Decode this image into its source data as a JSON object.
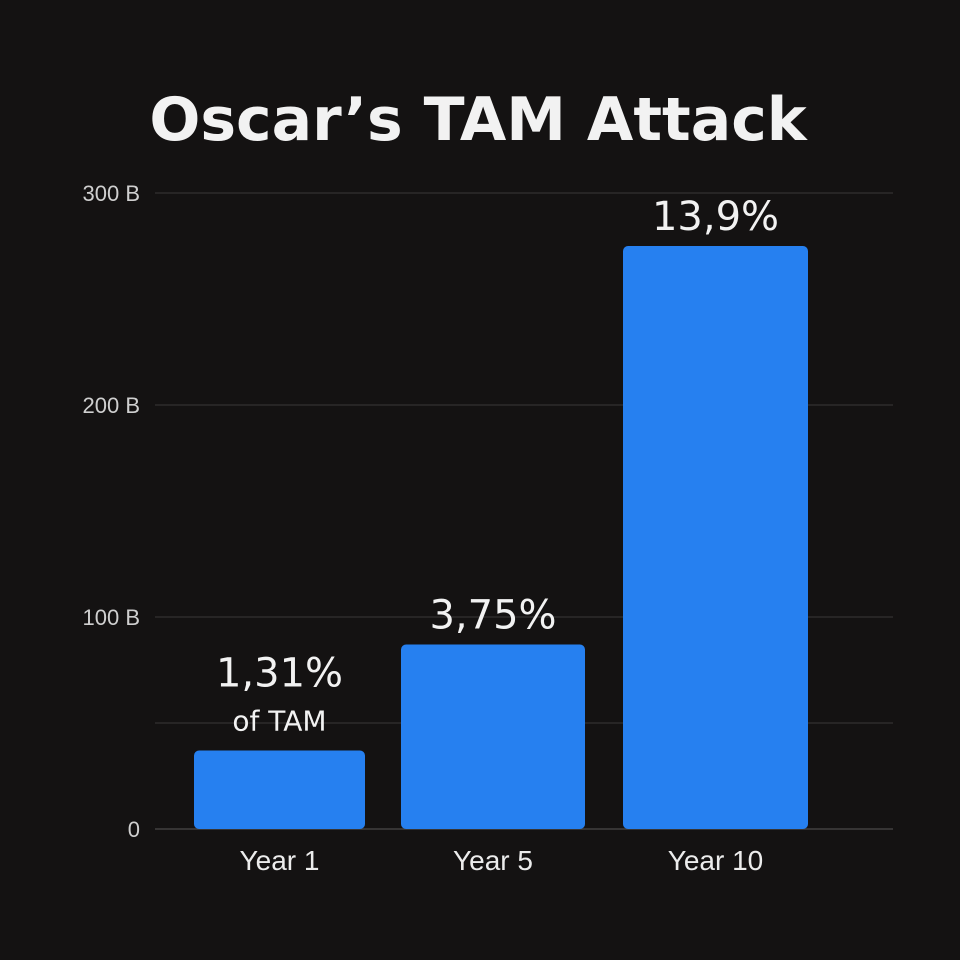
{
  "chart_data": {
    "type": "bar",
    "title": "Oscar’s TAM Attack",
    "categories": [
      "Year 1",
      "Year 5",
      "Year 10"
    ],
    "series": [
      {
        "values": [
          37,
          87,
          275
        ],
        "color": "#2680f0"
      }
    ],
    "data_labels": [
      "1,31%",
      "3,75%",
      "13,9%"
    ],
    "data_sublabels": [
      "of TAM",
      "",
      ""
    ],
    "ylim": [
      0,
      300
    ],
    "yticks": [
      0,
      100,
      200,
      300
    ],
    "ytick_labels": [
      "0",
      "100 B",
      "200 B",
      "300 B"
    ],
    "minor_gridlines": [
      50
    ],
    "xlabel": "",
    "ylabel": "",
    "grid": true,
    "legend": "none",
    "background_color": "#141212"
  }
}
